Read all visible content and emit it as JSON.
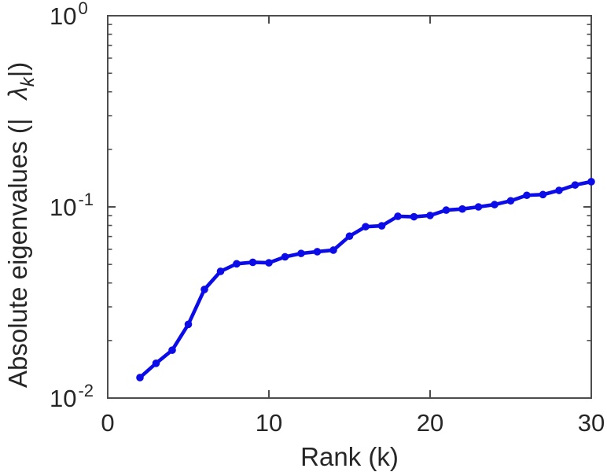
{
  "figure": {
    "background": "#ffffff",
    "axis_color": "#4d4d4d",
    "text_color": "#262626"
  },
  "chart_data": {
    "type": "line",
    "title": "",
    "xlabel": "Rank (k)",
    "ylabel": "Absolute eigenvalues (| λ_k|)",
    "ylabel_parts": {
      "prefix": "Absolute eigenvalues (|",
      "lambda": "λ",
      "subscript": "k",
      "suffix": "|)"
    },
    "yscale": "log",
    "xlim": [
      0,
      30
    ],
    "ylim": [
      0.01,
      1.0
    ],
    "ylim_log10": [
      -2,
      0
    ],
    "x_ticks": [
      0,
      10,
      20,
      30
    ],
    "x_tick_labels": [
      "0",
      "10",
      "20",
      "30"
    ],
    "y_tick_base": "10",
    "y_tick_exponents": [
      "0",
      "-1",
      "-2"
    ],
    "grid": false,
    "legend": null,
    "line_color": "#0c0ce8",
    "marker": "circle",
    "x": [
      2,
      3,
      4,
      5,
      6,
      7,
      8,
      9,
      10,
      11,
      12,
      13,
      14,
      15,
      16,
      17,
      18,
      19,
      20,
      21,
      22,
      23,
      24,
      25,
      26,
      27,
      28,
      29,
      30
    ],
    "y": [
      0.0128,
      0.0152,
      0.0178,
      0.0243,
      0.037,
      0.046,
      0.0504,
      0.0513,
      0.051,
      0.0548,
      0.0571,
      0.0583,
      0.0594,
      0.0703,
      0.0788,
      0.0796,
      0.0893,
      0.0888,
      0.0902,
      0.0962,
      0.0975,
      0.1,
      0.1028,
      0.1076,
      0.115,
      0.116,
      0.122,
      0.1302,
      0.1355
    ]
  }
}
